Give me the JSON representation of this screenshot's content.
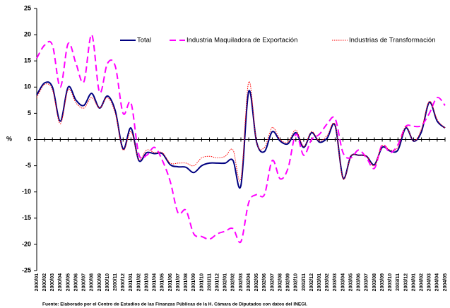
{
  "chart_data": {
    "type": "line",
    "y_label": "%",
    "source": "Fuente: Elaborado por el Centro de Estudios de las Finanzas Públicas de la H. Cámara de Diputados con datos del INEGI.",
    "categories": [
      "2000/01",
      "2000/02",
      "2000/03",
      "2000/04",
      "2000/05",
      "2000/06",
      "2000/07",
      "2000/08",
      "2000/09",
      "2000/10",
      "2000/11",
      "2000/12",
      "2001/01",
      "2001/02",
      "2001/03",
      "2001/04",
      "2001/05",
      "2001/06",
      "2001/07",
      "2001/08",
      "2001/09",
      "2001/10",
      "2001/11",
      "2001/12",
      "2002/01",
      "2002/02",
      "2002/03",
      "2002/04",
      "2002/05",
      "2002/06",
      "2002/07",
      "2002/08",
      "2002/09",
      "2002/10",
      "2002/11",
      "2002/12",
      "2003/01",
      "2003/02",
      "2003/03",
      "2003/04",
      "2003/05",
      "2003/06",
      "2003/07",
      "2003/08",
      "2003/09",
      "2003/10",
      "2003/11",
      "2003/12",
      "2004/01",
      "2004/02",
      "2004/03",
      "2004/04",
      "2004/05"
    ],
    "series": [
      {
        "name": "Total",
        "color": "#000080",
        "style": "solid",
        "values": [
          8.5,
          10.8,
          10,
          3.5,
          10,
          7.5,
          6.5,
          8.8,
          6,
          8.3,
          5.5,
          -1.8,
          2.2,
          -4,
          -2.5,
          -2.7,
          -2.7,
          -4.8,
          -5.2,
          -5.3,
          -6.3,
          -5,
          -4.5,
          -4.5,
          -4.5,
          -4,
          -8.8,
          9.2,
          -0.5,
          -2.3,
          1.5,
          -0.3,
          -0.8,
          1.3,
          -1.5,
          1.3,
          -0.5,
          0.3,
          2.7,
          -7.3,
          -3.2,
          -3,
          -3.2,
          -4.8,
          -1.5,
          -2.2,
          -2,
          2.2,
          -0.3,
          1.5,
          7.1,
          3.5,
          2.2
        ]
      },
      {
        "name": "Industria Maquiladora de Exportación",
        "color": "#ff00ff",
        "style": "dashed",
        "values": [
          15.5,
          18,
          18,
          10,
          18.3,
          14.5,
          11,
          20,
          9,
          14.5,
          14,
          5,
          7,
          -2.8,
          -3,
          -1.5,
          -4,
          -8,
          -14,
          -13.5,
          -18,
          -18.5,
          -19,
          -18,
          -17.5,
          -17,
          -19.5,
          -12,
          -10.5,
          -10.5,
          -4,
          -7.5,
          -5.5,
          1,
          -3,
          0,
          1,
          3,
          4,
          -2.5,
          -3.5,
          -2,
          -3.5,
          -5.5,
          -1,
          -2.5,
          -1,
          2.5,
          2.5,
          2.7,
          5,
          8,
          6.5
        ]
      },
      {
        "name": "Industrias de Transformación",
        "color": "#ff0000",
        "style": "dotted",
        "values": [
          8,
          10.5,
          9.5,
          3,
          9.5,
          7,
          6,
          8,
          6,
          8,
          5,
          -2,
          1.5,
          -3.8,
          -2,
          -2.5,
          -2.5,
          -4.5,
          -4.5,
          -4.5,
          -5,
          -3.5,
          -3.2,
          -3.5,
          -3.2,
          -2,
          -7.5,
          11,
          -0.5,
          -1.5,
          2.3,
          0,
          -0.5,
          1.8,
          -1.3,
          1.5,
          -0.3,
          0.8,
          2.8,
          -7.5,
          -3.2,
          -3,
          -3.2,
          -5,
          -1.2,
          -2,
          -1.5,
          2.5,
          -0.3,
          2,
          7.3,
          3.8,
          2.2
        ]
      }
    ],
    "ylim": [
      -25,
      25
    ],
    "yticks": [
      -25,
      -20,
      -15,
      -10,
      -5,
      0,
      5,
      10,
      15,
      20,
      25
    ],
    "grid": false
  }
}
